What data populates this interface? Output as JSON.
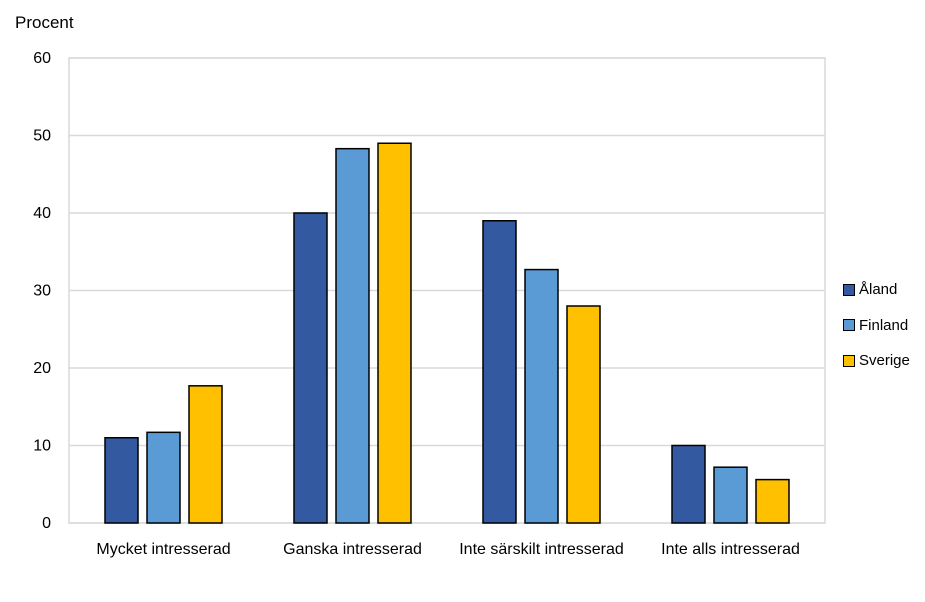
{
  "chart_data": {
    "type": "bar",
    "ylabel": "Procent",
    "ylim": [
      0,
      60
    ],
    "yticks": [
      0,
      10,
      20,
      30,
      40,
      50,
      60
    ],
    "categories": [
      "Mycket intresserad",
      "Ganska intresserad",
      "Inte särskilt intresserad",
      "Inte alls intresserad"
    ],
    "series": [
      {
        "name": "Åland",
        "color": "#335aa0",
        "values": [
          11,
          40,
          39,
          10
        ]
      },
      {
        "name": "Finland",
        "color": "#5b9bd5",
        "values": [
          11.7,
          48.3,
          32.7,
          7.2
        ]
      },
      {
        "name": "Sverige",
        "color": "#ffc000",
        "values": [
          17.7,
          49,
          28,
          5.6
        ]
      }
    ],
    "grid": true,
    "legend_position": "right"
  }
}
